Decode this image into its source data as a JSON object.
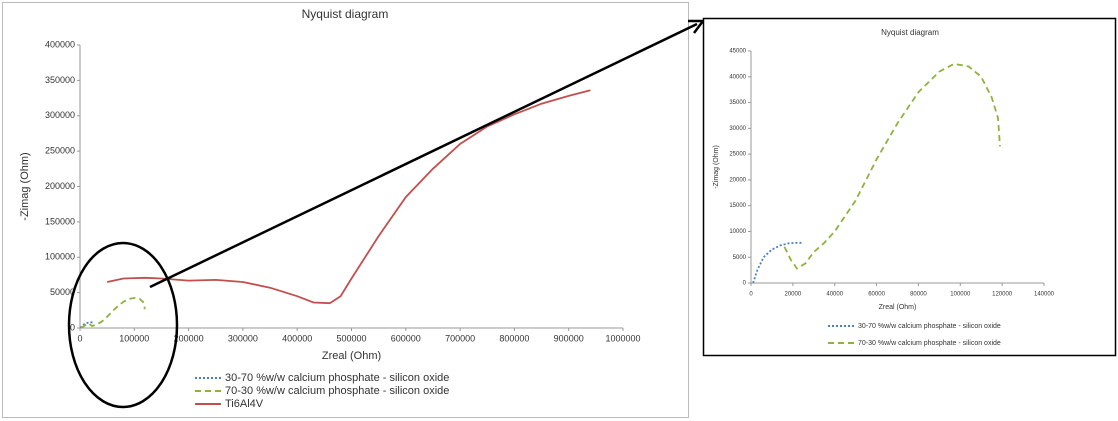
{
  "chart_data": [
    {
      "type": "line",
      "title": "Nyquist diagram",
      "x_label": "Zreal (Ohm)",
      "y_label": "-Zimag (Ohm)",
      "xlim": [
        0,
        1000000
      ],
      "xticks": [
        0,
        100000,
        200000,
        300000,
        400000,
        500000,
        600000,
        700000,
        800000,
        900000,
        1000000
      ],
      "ylim": [
        0,
        400000
      ],
      "yticks": [
        0,
        50000,
        100000,
        150000,
        200000,
        250000,
        300000,
        350000,
        400000
      ],
      "legend": "bottom",
      "series": [
        {
          "name": "30-70 %w/w calcium phosphate - silicon oxide",
          "color": "#4a7fc1",
          "style": "dotted",
          "x": [
            1000,
            5000,
            10000,
            15000,
            20000,
            25000
          ],
          "values": [
            0,
            4000,
            6500,
            7500,
            8000,
            8000
          ]
        },
        {
          "name": "70-30 %w/w calcium phosphate - silicon oxide",
          "color": "#8db33e",
          "style": "dashed",
          "x": [
            2000,
            10000,
            16000,
            22000,
            30000,
            40000,
            50000,
            60000,
            70000,
            80000,
            90000,
            100000,
            110000,
            116000,
            119000,
            119000
          ],
          "values": [
            0,
            4000,
            6500,
            2800,
            4500,
            9000,
            16000,
            24000,
            31000,
            37000,
            41000,
            42500,
            41000,
            37000,
            32000,
            26500
          ]
        },
        {
          "name": "Ti6Al4V",
          "color": "#c0504d",
          "style": "solid",
          "x": [
            50000,
            80000,
            120000,
            150000,
            200000,
            250000,
            300000,
            350000,
            400000,
            430000,
            460000,
            480000,
            500000,
            550000,
            600000,
            650000,
            700000,
            750000,
            800000,
            850000,
            900000,
            940000
          ],
          "values": [
            65000,
            70000,
            71000,
            70000,
            67000,
            68000,
            65000,
            57000,
            45000,
            36000,
            35000,
            45000,
            70000,
            130000,
            185000,
            225000,
            260000,
            285000,
            302000,
            317000,
            328000,
            336000
          ]
        }
      ]
    },
    {
      "type": "line",
      "title": "Nyquist diagram",
      "x_label": "Zreal (Ohm)",
      "y_label": "-Zimag (Ohm)",
      "xlim": [
        0,
        140000
      ],
      "xticks": [
        0,
        20000,
        40000,
        60000,
        80000,
        100000,
        120000,
        140000
      ],
      "ylim": [
        0,
        45000
      ],
      "yticks": [
        0,
        5000,
        10000,
        15000,
        20000,
        25000,
        30000,
        35000,
        40000,
        45000
      ],
      "legend": "bottom",
      "series": [
        {
          "name": "30-70 %w/w calcium phosphate - silicon oxide",
          "color": "#4a7fc1",
          "style": "dotted",
          "x": [
            1000,
            3000,
            6000,
            10000,
            14000,
            18000,
            22000,
            25000
          ],
          "values": [
            0,
            2500,
            5000,
            6500,
            7300,
            7700,
            7800,
            7800
          ]
        },
        {
          "name": "70-30 %w/w calcium phosphate - silicon oxide",
          "color": "#8db33e",
          "style": "dashed",
          "x": [
            16000,
            19000,
            22000,
            26000,
            30000,
            35000,
            40000,
            50000,
            60000,
            70000,
            80000,
            90000,
            97000,
            104000,
            110000,
            115000,
            118000,
            119000
          ],
          "values": [
            7000,
            4500,
            2800,
            3800,
            6000,
            7800,
            10000,
            16000,
            24000,
            31000,
            37000,
            41000,
            42500,
            42000,
            40000,
            36000,
            32000,
            26500
          ]
        }
      ]
    }
  ]
}
